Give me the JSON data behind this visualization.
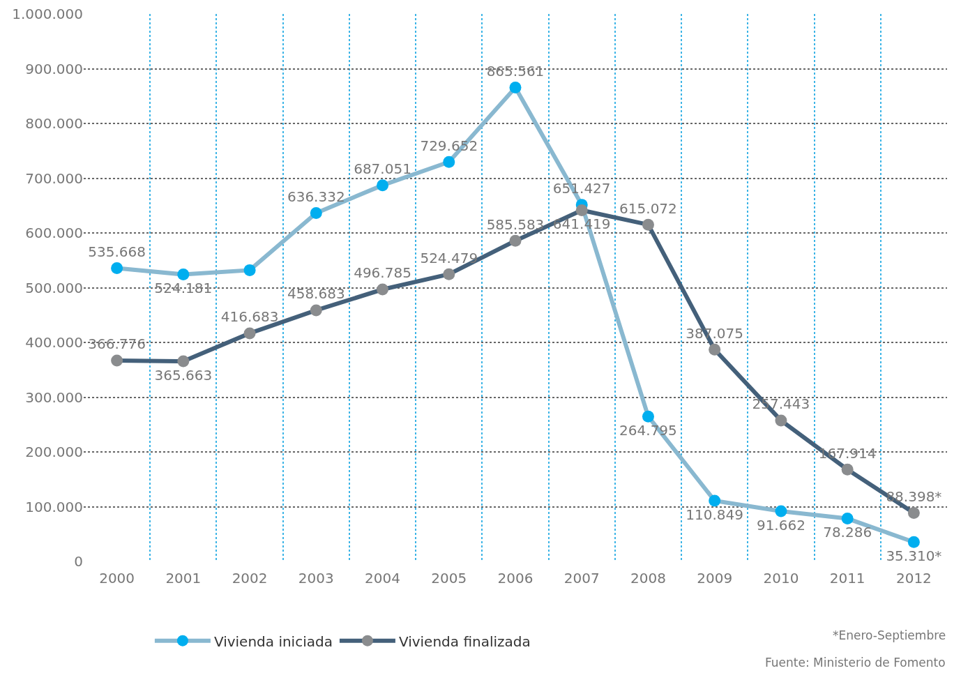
{
  "chart_data": {
    "type": "line",
    "categories": [
      "2000",
      "2001",
      "2002",
      "2003",
      "2004",
      "2005",
      "2006",
      "2007",
      "2008",
      "2009",
      "2010",
      "2011",
      "2012"
    ],
    "series": [
      {
        "name": "Vivienda iniciada",
        "color": "#89b8d0",
        "colors": [
          "#00aeef",
          "#00aeef",
          "#00aeef",
          "#00aeef",
          "#00aeef",
          "#00aeef",
          "#00aeef",
          "#00aeef",
          "#00aeef",
          "#00aeef",
          "#00aeef",
          "#00aeef",
          "#00aeef"
        ],
        "values": [
          535668,
          524181,
          532000,
          636332,
          687051,
          729652,
          865561,
          651427,
          264795,
          110849,
          91662,
          78286,
          35310
        ],
        "value_labels": [
          "535.668",
          "524.181",
          null,
          "636.332",
          "687.051",
          "729.652",
          "865.561",
          "651.427",
          "264.795",
          "110.849",
          "91.662",
          "78.286",
          "35.310*"
        ]
      },
      {
        "name": "Vivienda finalizada",
        "color": "#44607a",
        "colors": [
          "#8a8c8e",
          "#8a8c8e",
          "#8a8c8e",
          "#8a8c8e",
          "#8a8c8e",
          "#8a8c8e",
          "#8a8c8e",
          "#8a8c8e",
          "#8a8c8e",
          "#8a8c8e",
          "#8a8c8e",
          "#8a8c8e",
          "#8a8c8e"
        ],
        "values": [
          366776,
          365663,
          416683,
          458683,
          496785,
          524479,
          585583,
          641419,
          615072,
          387075,
          257443,
          167914,
          88398
        ],
        "value_labels": [
          "366.776",
          "365.663",
          "416.683",
          "458.683",
          "496.785",
          "524.479",
          "585.583",
          "641.419",
          "615.072",
          "387.075",
          "257.443",
          "167.914",
          "88.398*"
        ]
      }
    ],
    "ylim": [
      0,
      1000000
    ],
    "yticks": [
      0,
      {
        "value": 100000,
        "label": "100.000"
      },
      {
        "value": 200000,
        "label": "200.000"
      },
      {
        "value": 300000,
        "label": "300.000"
      },
      {
        "value": 400000,
        "label": "400.000"
      },
      {
        "value": 500000,
        "label": "500.000"
      },
      {
        "value": 600000,
        "label": "600.000"
      },
      {
        "value": 700000,
        "label": "700.000"
      },
      {
        "value": 800000,
        "label": "800.000"
      },
      {
        "value": 900000,
        "label": "900.000"
      },
      {
        "value": 1000000,
        "label": "1.000.000"
      }
    ],
    "grid": true,
    "legend": "bottom",
    "marker": "circle",
    "line_style": "solid",
    "annotations": [
      "*Enero-Septiembre",
      "Fuente: Ministerio de Fomento"
    ]
  }
}
